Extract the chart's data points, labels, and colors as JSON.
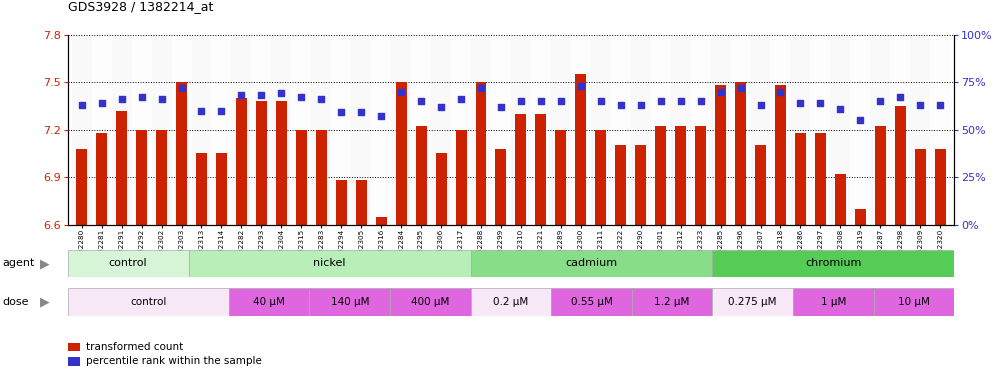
{
  "title": "GDS3928 / 1382214_at",
  "samples": [
    "GSM782280",
    "GSM782281",
    "GSM782291",
    "GSM782292",
    "GSM782302",
    "GSM782303",
    "GSM782313",
    "GSM782314",
    "GSM782282",
    "GSM782293",
    "GSM782304",
    "GSM782315",
    "GSM782283",
    "GSM782294",
    "GSM782305",
    "GSM782316",
    "GSM782284",
    "GSM782295",
    "GSM782306",
    "GSM782317",
    "GSM782288",
    "GSM782299",
    "GSM782310",
    "GSM782321",
    "GSM782289",
    "GSM782300",
    "GSM782311",
    "GSM782322",
    "GSM782290",
    "GSM782301",
    "GSM782312",
    "GSM782323",
    "GSM782285",
    "GSM782296",
    "GSM782307",
    "GSM782318",
    "GSM782286",
    "GSM782297",
    "GSM782308",
    "GSM782319",
    "GSM782287",
    "GSM782298",
    "GSM782309",
    "GSM782320"
  ],
  "bar_values": [
    7.08,
    7.18,
    7.32,
    7.2,
    7.2,
    7.5,
    7.05,
    7.05,
    7.4,
    7.38,
    7.38,
    7.2,
    7.2,
    6.88,
    6.88,
    6.65,
    7.5,
    7.22,
    7.05,
    7.2,
    7.5,
    7.08,
    7.3,
    7.3,
    7.2,
    7.55,
    7.2,
    7.1,
    7.1,
    7.22,
    7.22,
    7.22,
    7.48,
    7.5,
    7.1,
    7.48,
    7.18,
    7.18,
    6.92,
    6.7,
    7.22,
    7.35,
    7.08,
    7.08
  ],
  "percentile_values": [
    63,
    64,
    66,
    67,
    66,
    72,
    60,
    60,
    68,
    68,
    69,
    67,
    66,
    59,
    59,
    57,
    70,
    65,
    62,
    66,
    72,
    62,
    65,
    65,
    65,
    73,
    65,
    63,
    63,
    65,
    65,
    65,
    70,
    72,
    63,
    70,
    64,
    64,
    61,
    55,
    65,
    67,
    63,
    63
  ],
  "ylim_left": [
    6.6,
    7.8
  ],
  "ylim_right": [
    0,
    100
  ],
  "yticks_left": [
    6.6,
    6.9,
    7.2,
    7.5,
    7.8
  ],
  "yticks_right": [
    0,
    25,
    50,
    75,
    100
  ],
  "baseline": 6.6,
  "bar_color": "#cc2200",
  "dot_color": "#3333cc",
  "agent_groups": [
    {
      "label": "control",
      "start": 0,
      "end": 5,
      "color": "#d6f5d6"
    },
    {
      "label": "nickel",
      "start": 6,
      "end": 19,
      "color": "#b8eeb8"
    },
    {
      "label": "cadmium",
      "start": 20,
      "end": 31,
      "color": "#88dd88"
    },
    {
      "label": "chromium",
      "start": 32,
      "end": 43,
      "color": "#55cc55"
    }
  ],
  "dose_groups": [
    {
      "label": "control",
      "start": 0,
      "end": 7,
      "color": "#f8e8f8"
    },
    {
      "label": "40 μM",
      "start": 8,
      "end": 11,
      "color": "#e066e0"
    },
    {
      "label": "140 μM",
      "start": 12,
      "end": 15,
      "color": "#e066e0"
    },
    {
      "label": "400 μM",
      "start": 16,
      "end": 19,
      "color": "#e066e0"
    },
    {
      "label": "0.2 μM",
      "start": 20,
      "end": 23,
      "color": "#f8e8f8"
    },
    {
      "label": "0.55 μM",
      "start": 24,
      "end": 27,
      "color": "#e066e0"
    },
    {
      "label": "1.2 μM",
      "start": 28,
      "end": 31,
      "color": "#e066e0"
    },
    {
      "label": "0.275 μM",
      "start": 32,
      "end": 35,
      "color": "#f8e8f8"
    },
    {
      "label": "1 μM",
      "start": 36,
      "end": 39,
      "color": "#e066e0"
    },
    {
      "label": "10 μM",
      "start": 40,
      "end": 43,
      "color": "#e066e0"
    }
  ],
  "legend_items": [
    {
      "label": "transformed count",
      "color": "#cc2200"
    },
    {
      "label": "percentile rank within the sample",
      "color": "#3333cc"
    }
  ],
  "xtick_bg_colors": [
    "#e8e8e8",
    "#f8f8f8"
  ]
}
